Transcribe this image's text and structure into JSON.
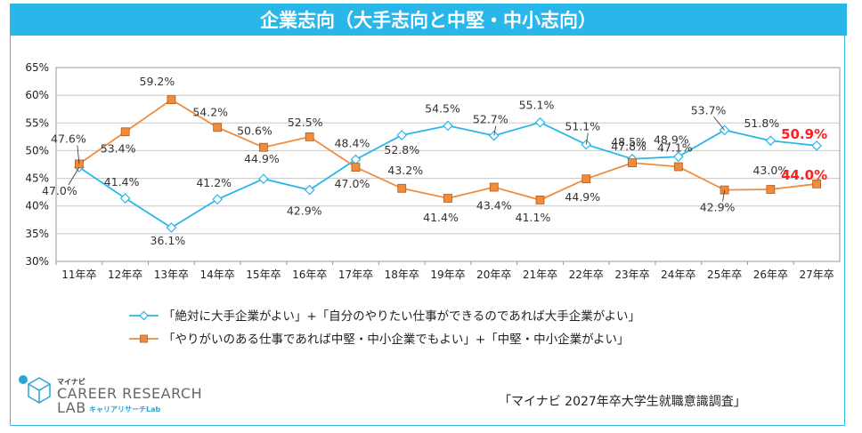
{
  "header": {
    "title": "企業志向（大手志向と中堅・中小志向）"
  },
  "chart_data": {
    "type": "line",
    "categories": [
      "11年卒",
      "12年卒",
      "13年卒",
      "14年卒",
      "15年卒",
      "16年卒",
      "17年卒",
      "18年卒",
      "19年卒",
      "20年卒",
      "21年卒",
      "22年卒",
      "23年卒",
      "24年卒",
      "25年卒",
      "26年卒",
      "27年卒"
    ],
    "yticks": [
      "65%",
      "60%",
      "55%",
      "50%",
      "45%",
      "40%",
      "35%",
      "30%"
    ],
    "ylim": [
      30,
      65
    ],
    "grid": true,
    "legend_position": "bottom",
    "series": [
      {
        "name": "「絶対に大手企業がよい」+「自分のやりたい仕事ができるのであれば大手企業がよい」",
        "color": "#29b6e8",
        "marker": "diamond",
        "values": [
          47.0,
          41.4,
          36.1,
          41.2,
          44.9,
          42.9,
          48.4,
          52.8,
          54.5,
          52.7,
          55.1,
          51.1,
          48.5,
          48.9,
          53.7,
          51.8,
          50.9
        ],
        "labels": [
          "47.0%",
          "41.4%",
          "36.1%",
          "41.2%",
          "44.9%",
          "42.9%",
          "48.4%",
          "52.8%",
          "54.5%",
          "52.7%",
          "55.1%",
          "51.1%",
          "48.5%",
          "48.9%",
          "53.7%",
          "51.8%",
          "50.9%"
        ]
      },
      {
        "name": "「やりがいのある仕事であれば中堅・中小企業でもよい」+「中堅・中小企業がよい」",
        "color": "#f08c3c",
        "marker": "square",
        "values": [
          47.6,
          53.4,
          59.2,
          54.2,
          50.6,
          52.5,
          47.0,
          43.2,
          41.4,
          43.4,
          41.1,
          44.9,
          47.8,
          47.1,
          42.9,
          43.0,
          44.0
        ],
        "labels": [
          "47.6%",
          "53.4%",
          "59.2%",
          "54.2%",
          "50.6%",
          "52.5%",
          "47.0%",
          "43.2%",
          "41.4%",
          "43.4%",
          "41.1%",
          "44.9%",
          "47.8%",
          "47.1%",
          "42.9%",
          "43.0%",
          "44.0%"
        ]
      }
    ]
  },
  "logo": {
    "brand_small": "マイナビ",
    "brand_main_1": "CAREER RESEARCH",
    "brand_main_2": "LAB",
    "brand_sub": "キャリアリサーチLab"
  },
  "source": "「マイナビ 2027年卒大学生就職意識調査」"
}
